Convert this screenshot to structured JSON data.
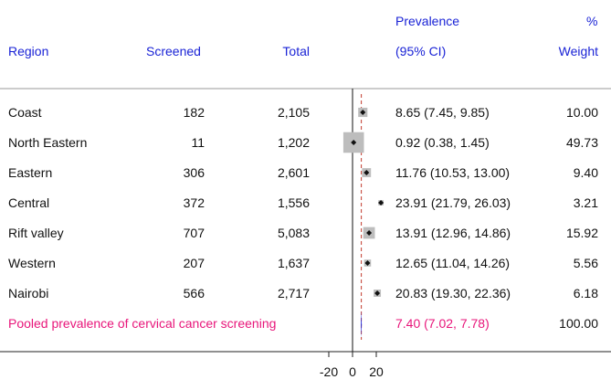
{
  "colors": {
    "header_text": "#1a23d6",
    "pooled_text": "#e8157a",
    "pooled_diamond": "#1a23d6",
    "reference_line": "#c0392b",
    "weight_box": "#bdbdbd"
  },
  "headers": {
    "region": "Region",
    "screened": "Screened",
    "total": "Total",
    "prevalence_line1": "Prevalence",
    "prevalence_line2": "(95% CI)",
    "weight_line1": "%",
    "weight_line2": "Weight"
  },
  "rows": [
    {
      "region": "Coast",
      "screened": "182",
      "total": "2,105",
      "ci_text": "8.65 (7.45, 9.85)",
      "weight": "10.00"
    },
    {
      "region": "North Eastern",
      "screened": "11",
      "total": "1,202",
      "ci_text": "0.92 (0.38, 1.45)",
      "weight": "49.73"
    },
    {
      "region": "Eastern",
      "screened": "306",
      "total": "2,601",
      "ci_text": "11.76 (10.53, 13.00)",
      "weight": "9.40"
    },
    {
      "region": "Central",
      "screened": "372",
      "total": "1,556",
      "ci_text": "23.91 (21.79, 26.03)",
      "weight": "3.21"
    },
    {
      "region": "Rift valley",
      "screened": "707",
      "total": "5,083",
      "ci_text": "13.91 (12.96, 14.86)",
      "weight": "15.92"
    },
    {
      "region": "Western",
      "screened": "207",
      "total": "1,637",
      "ci_text": "12.65 (11.04, 14.26)",
      "weight": "5.56"
    },
    {
      "region": "Nairobi",
      "screened": "566",
      "total": "2,717",
      "ci_text": "20.83 (19.30, 22.36)",
      "weight": "6.18"
    }
  ],
  "pooled": {
    "label": "Pooled prevalence of cervical cancer screening",
    "ci_text": "7.40 (7.02, 7.78)",
    "weight": "100.00"
  },
  "chart_data": {
    "type": "forest",
    "x_ticks": [
      -20,
      0,
      20
    ],
    "x_tick_labels": [
      "-20",
      "0",
      "20"
    ],
    "xlim": [
      -20,
      20
    ],
    "null_line": 0,
    "pooled_line": 7.4,
    "series": [
      {
        "category": "Coast",
        "estimate": 8.65,
        "lower": 7.45,
        "upper": 9.85,
        "weight": 10.0
      },
      {
        "category": "North Eastern",
        "estimate": 0.92,
        "lower": 0.38,
        "upper": 1.45,
        "weight": 49.73
      },
      {
        "category": "Eastern",
        "estimate": 11.76,
        "lower": 10.53,
        "upper": 13.0,
        "weight": 9.4
      },
      {
        "category": "Central",
        "estimate": 23.91,
        "lower": 21.79,
        "upper": 26.03,
        "weight": 3.21
      },
      {
        "category": "Rift valley",
        "estimate": 13.91,
        "lower": 12.96,
        "upper": 14.86,
        "weight": 15.92
      },
      {
        "category": "Western",
        "estimate": 12.65,
        "lower": 11.04,
        "upper": 14.26,
        "weight": 5.56
      },
      {
        "category": "Nairobi",
        "estimate": 20.83,
        "lower": 19.3,
        "upper": 22.36,
        "weight": 6.18
      }
    ],
    "pooled": {
      "estimate": 7.4,
      "lower": 7.02,
      "upper": 7.78
    }
  }
}
